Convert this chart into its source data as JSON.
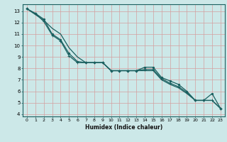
{
  "xlabel": "Humidex (Indice chaleur)",
  "bg_color": "#cce8e8",
  "grid_color": "#d4a0a0",
  "line_color": "#1a6060",
  "xlim": [
    -0.5,
    23.5
  ],
  "ylim": [
    3.8,
    13.6
  ],
  "yticks": [
    4,
    5,
    6,
    7,
    8,
    9,
    10,
    11,
    12,
    13
  ],
  "xticks": [
    0,
    1,
    2,
    3,
    4,
    5,
    6,
    7,
    8,
    9,
    10,
    11,
    12,
    13,
    14,
    15,
    16,
    17,
    18,
    19,
    20,
    21,
    22,
    23
  ],
  "line1_x": [
    0,
    1,
    2,
    3,
    4,
    5,
    6,
    7,
    8,
    9,
    10,
    11,
    12,
    13,
    14,
    15,
    16,
    17,
    18,
    19,
    20,
    21,
    22,
    23
  ],
  "line1_y": [
    13.2,
    12.8,
    12.3,
    11.0,
    10.5,
    9.3,
    8.6,
    8.5,
    8.5,
    8.5,
    7.8,
    7.8,
    7.8,
    7.8,
    8.1,
    8.1,
    7.2,
    6.9,
    6.6,
    6.0,
    5.2,
    5.2,
    5.8,
    4.5
  ],
  "line2_x": [
    0,
    1,
    2,
    3,
    4,
    5,
    6,
    7,
    8,
    9,
    10,
    11,
    12,
    13,
    14,
    15,
    16,
    17,
    18,
    19,
    20,
    21,
    22,
    23
  ],
  "line2_y": [
    13.2,
    12.8,
    12.1,
    10.9,
    10.4,
    9.1,
    8.5,
    8.5,
    8.5,
    8.5,
    7.8,
    7.8,
    7.8,
    7.8,
    7.9,
    7.9,
    7.1,
    6.7,
    6.4,
    5.9,
    5.2,
    5.2,
    5.2,
    4.5
  ],
  "line3_x": [
    0,
    1,
    2,
    3,
    4,
    5,
    6,
    7,
    8,
    9,
    10,
    11,
    12,
    13,
    14,
    15,
    16,
    17,
    18,
    19,
    20,
    21,
    22,
    23
  ],
  "line3_y": [
    13.2,
    12.7,
    12.2,
    11.5,
    11.0,
    9.8,
    9.0,
    8.5,
    8.5,
    8.5,
    7.8,
    7.8,
    7.8,
    7.8,
    7.8,
    7.8,
    7.0,
    6.6,
    6.3,
    5.8,
    5.2,
    5.2,
    5.2,
    4.5
  ]
}
